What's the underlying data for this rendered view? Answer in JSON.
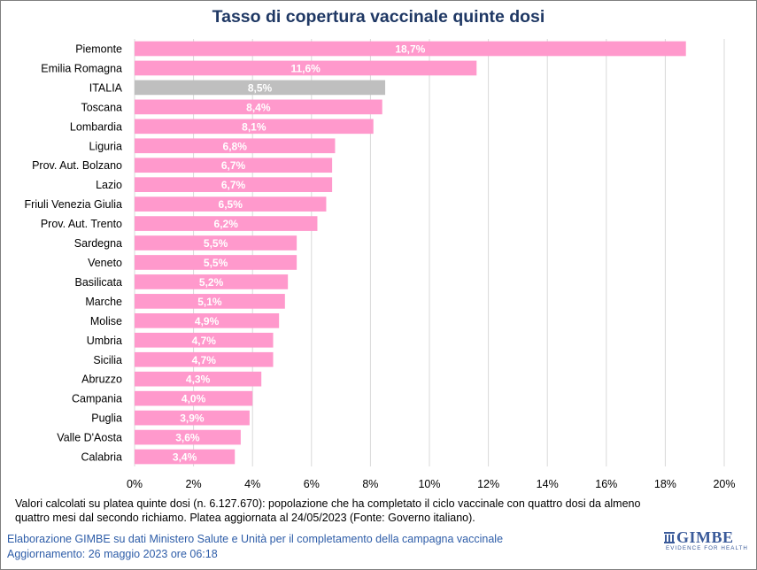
{
  "chart_data": {
    "type": "bar",
    "orientation": "horizontal",
    "title": "Tasso di copertura vaccinale quinte dosi",
    "categories": [
      "Piemonte",
      "Emilia Romagna",
      "ITALIA",
      "Toscana",
      "Lombardia",
      "Liguria",
      "Prov. Aut. Bolzano",
      "Lazio",
      "Friuli Venezia Giulia",
      "Prov. Aut. Trento",
      "Sardegna",
      "Veneto",
      "Basilicata",
      "Marche",
      "Molise",
      "Umbria",
      "Sicilia",
      "Abruzzo",
      "Campania",
      "Puglia",
      "Valle D'Aosta",
      "Calabria"
    ],
    "values": [
      18.7,
      11.6,
      8.5,
      8.4,
      8.1,
      6.8,
      6.7,
      6.7,
      6.5,
      6.2,
      5.5,
      5.5,
      5.2,
      5.1,
      4.9,
      4.7,
      4.7,
      4.3,
      4.0,
      3.9,
      3.6,
      3.4
    ],
    "data_labels": [
      "18,7%",
      "11,6%",
      "8,5%",
      "8,4%",
      "8,1%",
      "6,8%",
      "6,7%",
      "6,7%",
      "6,5%",
      "6,2%",
      "5,5%",
      "5,5%",
      "5,2%",
      "5,1%",
      "4,9%",
      "4,7%",
      "4,7%",
      "4,3%",
      "4,0%",
      "3,9%",
      "3,6%",
      "3,4%"
    ],
    "highlight_category": "ITALIA",
    "xlim": [
      0,
      20
    ],
    "xticks": [
      0,
      2,
      4,
      6,
      8,
      10,
      12,
      14,
      16,
      18,
      20
    ],
    "xtick_labels": [
      "0%",
      "2%",
      "4%",
      "6%",
      "8%",
      "10%",
      "12%",
      "14%",
      "16%",
      "18%",
      "20%"
    ],
    "xlabel": "",
    "ylabel": "",
    "grid": "vertical",
    "colors": {
      "bar": "#ff99cc",
      "highlight": "#bfbfbf",
      "grid": "#d9d9d9",
      "title": "#1f3864"
    }
  },
  "footer": {
    "note_line1": "Valori calcolati su platea quinte dosi (n. 6.127.670): popolazione che ha completato il ciclo vaccinale con quattro dosi da almeno",
    "note_line2": "quattro mesi dal secondo richiamo. Platea aggiornata al 24/05/2023 (Fonte: Governo italiano).",
    "credit_line1": "Elaborazione GIMBE su dati Ministero Salute e Unità per il completamento della campagna vaccinale",
    "credit_line2": "Aggiornamento: 26 maggio 2023 ore 06:18",
    "credit_color": "#2e5da8"
  },
  "logo": {
    "name": "GIMBE",
    "tagline": "EVIDENCE FOR HEALTH",
    "color": "#3b5b9a"
  }
}
